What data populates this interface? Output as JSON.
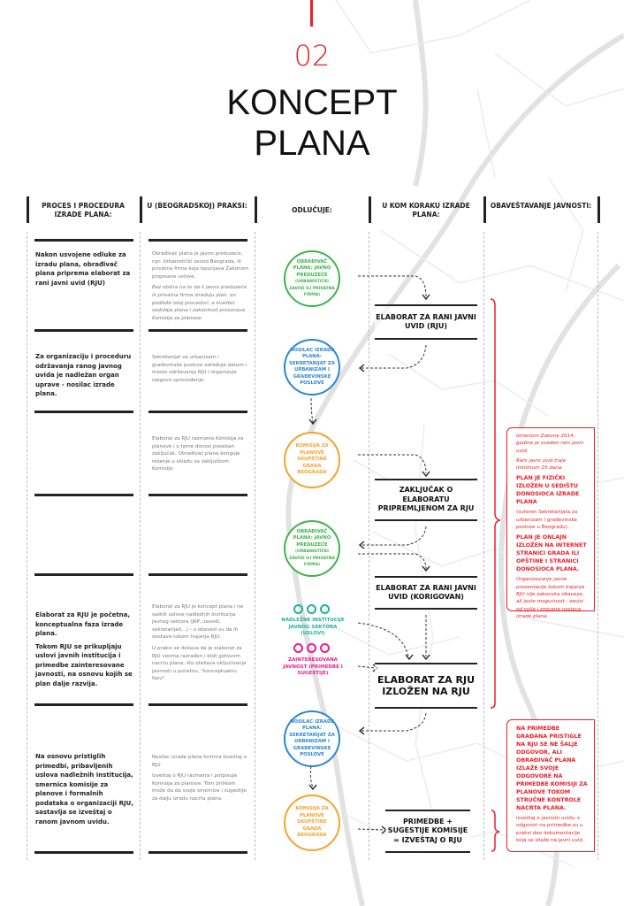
{
  "title": {
    "number": "02",
    "line1": "KONCEPT",
    "line2": "PLANA"
  },
  "headers": [
    "PROCES I PROCEDURA IZRADE PLANA:",
    "U (BEOGRADSKOJ) PRAKSI:",
    "ODLUČUJE:",
    "U KOM KORAKU IZRADE PLANA:",
    "OBAVEŠTAVANJE JAVNOSTI:"
  ],
  "process": [
    [
      "Nakon usvojene odluke za izradu plana, obrađivač plana priprema elaborat za rani javni uvid (RJU)"
    ],
    [
      "Za organizaciju i proceduru održavanja ranog javnog uvida je nadležan organ uprave - nosilac izrade plana."
    ],
    [
      "Elaborat za RJU je početna, konceptualna faza izrade plana.",
      "Tokom RJU se prikupljaju uslovi javnih institucija i primedbe zainteresovane javnosti, na osnovu kojih se plan dalje razvija."
    ],
    [
      "Na osnovu pristiglih primedbi, pribavljenih uslova nadležnih institucija, smernica komisije za planove i formalnih podataka o organizaciji RJU, sastavlja se izveštaj o ranom javnom uvidu."
    ]
  ],
  "practice": [
    [
      "Obrađivač plana je javno preduzeće, npr. Urbanistički zavod Beograda, ili privatna firma koja ispunjava Zakonom propisane uslove.",
      "Bez obzira na to da li javno preduzeće ili privatna firma izrađuju plan, on podleže istoj proceduri, a kvalitet sadržaja plana i zakonitost proverava Komisija za planove."
    ],
    [
      "Sekretarijat za urbanizam i građevinske poslove određuje datum i mesto održavanja RJU i organizuje njegovo sprovođenje."
    ],
    [
      "Elaborat za RJU razmatra Komisija za planove i o tome donosi poseban zaključak. Obrađivač plana koriguje rešenje u skladu sa zaključkom Komisije."
    ],
    [
      "Elaborat za RJU je koncept plana i ne sadrži uslove nadležnih institucija javnog sektora (JKP, zavodi, sekretarijati...) - u obavezi su da ih dostave tokom trajanja RJU.",
      "U praksi se dešava da je elaborat za RJU veoma razrađen i bliži gotovom nacrtu plana, što otežava uključivanje javnosti u početnu, \"konceptualnu fazu\"."
    ],
    [
      "Nosilac izrade plana formira Izveštaj o RJU.",
      "Izveštaj o RJU razmatra i potpisuje Komisija za planove. Tom prilikom može da da svoje smernice i sugestije za dalju izradu nacrta plana."
    ]
  ],
  "deciders": {
    "obradjivac": "OBRAĐIVAČ PLANA: JAVNO PREDUZEĆE",
    "obradjivac_sub": "(URBANISTIČKI ZAVOD ILI PRIVATNA FIRMA)",
    "nosilac": "NOSILAC IZRADE PLANA: SEKRETARIJAT ZA URBANIZAM I GRAĐEVINSKE POSLOVE",
    "komisija": "KOMISIJA ZA PLANOVE SKUPŠTINE GRADA BEOGRADA",
    "institucije": "NADLEŽNE INSTITUCIJE JAVNOG SEKTORA (USLOVI)",
    "javnost": "ZAINTERESOVANA JAVNOST (PRIMEDBE I SUGESTIJE)"
  },
  "steps": [
    "ELABORAT ZA RANI JAVNI UVID (RJU)",
    "ZAKLJUČAK O ELABORATU PRIPREMLJENOM ZA RJU",
    "ELABORAT ZA RANI JAVNI UVID (KORIGOVAN)",
    "ELABORAT ZA RJU IZLOŽEN NA RJU",
    "PRIMEDBE + SUGESTIJE KOMISIJE = IZVEŠTAJ O RJU"
  ],
  "public": {
    "box1": [
      "Izmenom Zakona 2014. godine je uveden rani javni uvid.",
      "Rani javni uvid traje minimum 15 dana.",
      "PLAN JE FIZIČKI IZLOŽEN U SEDIŠTU DONOSIOCA IZRADE PLANA",
      "(suteren Sekretarijata za urbanizam i građevinske poslove u Beogradu).",
      "PLAN JE ONLAJN IZLOŽEN NA INTERNET STRANICI GRADA ILI OPŠTINE I STRANICI DONOSIOCA PLANA.",
      "Organizovanje javne prezentacije tokom trajanja RJU nije zakonska obaveza, ali jeste mogućnost - zavisi od volje i procene nosioca izrade plana."
    ],
    "box2": [
      "NA PRIMEDBE GRAĐANA PRISTIGLE NA RJU SE NE ŠALJE ODGOVOR, ALI OBRAĐIVAČ PLANA IZLAŽE SVOJE ODGOVORE NA PRIMEDBE KOMISIJI ZA PLANOVE TOKOM STRUČNE KONTROLE NACRTA PLANA.",
      "Izveštaj o javnom uvidu + odgovori na primedbe su u praksi deo dokumentacije koja se izlaže na javni uvid."
    ]
  },
  "colors": {
    "accent": "#e8202a",
    "green": "#3cb44a",
    "blue": "#2a86d1",
    "orange": "#f7a12b",
    "teal": "#1fb29a",
    "pink": "#ec1c8c"
  }
}
